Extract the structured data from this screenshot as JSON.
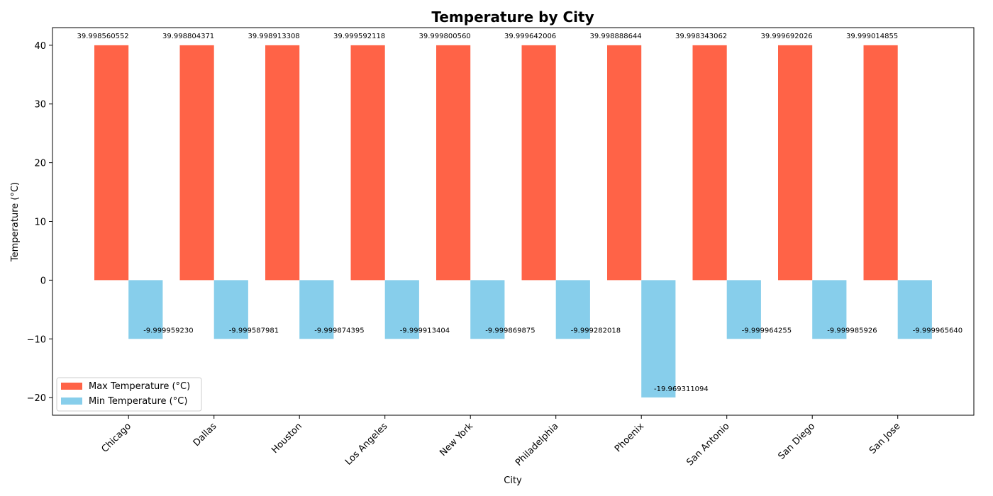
{
  "chart_data": {
    "type": "bar",
    "title": "Temperature by City",
    "xlabel": "City",
    "ylabel": "Temperature (°C)",
    "ylim": [
      -23,
      43
    ],
    "yticks": [
      -20,
      -10,
      0,
      10,
      20,
      30,
      40
    ],
    "ytick_labels": [
      "−20",
      "−10",
      "0",
      "10",
      "20",
      "30",
      "40"
    ],
    "grid": false,
    "legend_position": "bottom-left",
    "categories": [
      "Chicago",
      "Dallas",
      "Houston",
      "Los Angeles",
      "New York",
      "Philadelphia",
      "Phoenix",
      "San Antonio",
      "San Diego",
      "San Jose"
    ],
    "series": [
      {
        "name": "Max Temperature (°C)",
        "color": "#ff6347",
        "values": [
          39.998560552,
          39.998804371,
          39.998913308,
          39.999592118,
          39.99980056,
          39.999642006,
          39.998888644,
          39.998343062,
          39.999692026,
          39.999014855
        ],
        "labels": [
          "39.998560552",
          "39.998804371",
          "39.998913308",
          "39.999592118",
          "39.999800560",
          "39.999642006",
          "39.998888644",
          "39.998343062",
          "39.999692026",
          "39.999014855"
        ]
      },
      {
        "name": "Min Temperature (°C)",
        "color": "#87ceeb",
        "values": [
          -9.99995923,
          -9.999587981,
          -9.999874395,
          -9.999913404,
          -9.999869875,
          -9.999282018,
          -19.969311094,
          -9.999964255,
          -9.999985926,
          -9.99996564
        ],
        "labels": [
          "-9.999959230",
          "-9.999587981",
          "-9.999874395",
          "-9.999913404",
          "-9.999869875",
          "-9.999282018",
          "-19.969311094",
          "-9.999964255",
          "-9.999985926",
          "-9.999965640"
        ]
      }
    ]
  }
}
